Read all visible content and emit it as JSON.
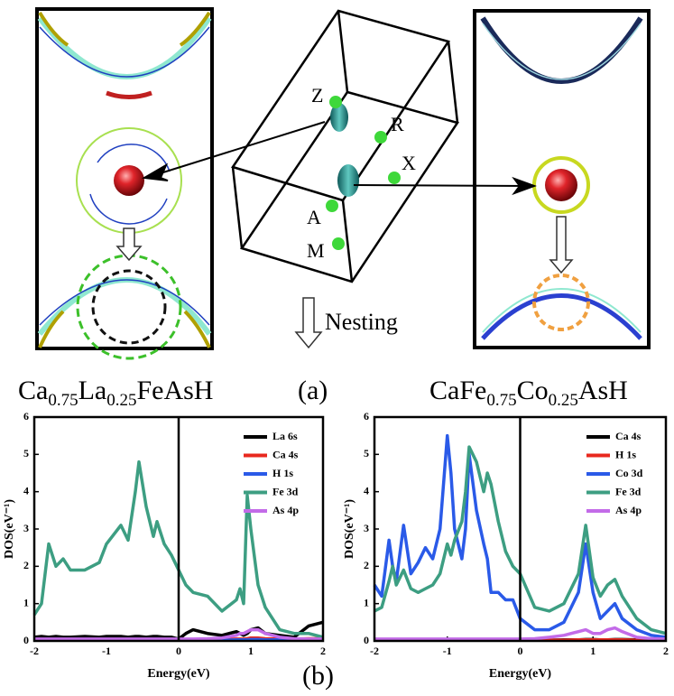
{
  "panel_a": {
    "points": [
      "Z",
      "R",
      "X",
      "A",
      "M"
    ],
    "arrow_label": "Nesting",
    "label": "(a)",
    "left_compound": [
      "Ca",
      "0.75",
      "La",
      "0.25",
      "FeAsH"
    ],
    "right_compound": [
      "CaFe",
      "0.75",
      "Co",
      "0.25",
      "AsH"
    ]
  },
  "panel_b": {
    "label": "(b)"
  },
  "chart_data": [
    {
      "type": "line",
      "xlabel": "Energy(eV)",
      "ylabel": "DOS(eV⁻¹)",
      "xlim": [
        -2,
        2
      ],
      "ylim": [
        0,
        6
      ],
      "xticks": [
        -2,
        -1,
        0,
        1,
        2
      ],
      "yticks": [
        0,
        1,
        2,
        3,
        4,
        5,
        6
      ],
      "fermi_level": 0,
      "legend": "upper right",
      "x": [
        -2,
        -1.9,
        -1.8,
        -1.7,
        -1.6,
        -1.5,
        -1.3,
        -1.1,
        -1,
        -0.8,
        -0.7,
        -0.6,
        -0.55,
        -0.45,
        -0.35,
        -0.3,
        -0.2,
        -0.1,
        0,
        0.1,
        0.2,
        0.4,
        0.6,
        0.8,
        0.85,
        0.9,
        0.95,
        1,
        1.1,
        1.2,
        1.4,
        1.6,
        1.8,
        2
      ],
      "series": [
        {
          "name": "La 6s",
          "color": "#000000",
          "values": [
            0.1,
            0.12,
            0.1,
            0.12,
            0.1,
            0.1,
            0.12,
            0.1,
            0.12,
            0.12,
            0.1,
            0.12,
            0.12,
            0.1,
            0.12,
            0.12,
            0.1,
            0.1,
            0.05,
            0.2,
            0.3,
            0.2,
            0.15,
            0.25,
            0.2,
            0.15,
            0.2,
            0.3,
            0.35,
            0.2,
            0.15,
            0.1,
            0.4,
            0.5
          ]
        },
        {
          "name": "Ca 4s",
          "color": "#e8281e",
          "values": [
            0.03,
            0.03,
            0.03,
            0.03,
            0.03,
            0.03,
            0.03,
            0.03,
            0.03,
            0.03,
            0.03,
            0.03,
            0.03,
            0.03,
            0.03,
            0.03,
            0.03,
            0.03,
            0.02,
            0.03,
            0.04,
            0.04,
            0.04,
            0.05,
            0.05,
            0.05,
            0.06,
            0.08,
            0.08,
            0.06,
            0.05,
            0.05,
            0.06,
            0.06
          ]
        },
        {
          "name": "H  1s",
          "color": "#2a5ae8",
          "values": [
            0.02,
            0.02,
            0.02,
            0.02,
            0.02,
            0.02,
            0.02,
            0.02,
            0.02,
            0.02,
            0.02,
            0.02,
            0.02,
            0.02,
            0.02,
            0.02,
            0.02,
            0.02,
            0.02,
            0.02,
            0.02,
            0.02,
            0.02,
            0.03,
            0.03,
            0.03,
            0.03,
            0.04,
            0.04,
            0.03,
            0.03,
            0.03,
            0.03,
            0.03
          ]
        },
        {
          "name": "Fe 3d",
          "color": "#3d9e82",
          "values": [
            0.7,
            1.0,
            2.6,
            2.0,
            2.2,
            1.9,
            1.9,
            2.1,
            2.6,
            3.1,
            2.7,
            4.0,
            4.8,
            3.6,
            2.8,
            3.2,
            2.6,
            2.3,
            1.9,
            1.5,
            1.3,
            1.2,
            0.8,
            1.1,
            1.4,
            1.0,
            3.9,
            3.0,
            1.5,
            0.9,
            0.3,
            0.2,
            0.2,
            0.1
          ]
        },
        {
          "name": "As 4p",
          "color": "#c36be8",
          "values": [
            0.05,
            0.05,
            0.05,
            0.05,
            0.05,
            0.05,
            0.05,
            0.05,
            0.05,
            0.05,
            0.05,
            0.05,
            0.05,
            0.05,
            0.05,
            0.05,
            0.05,
            0.05,
            0.05,
            0.05,
            0.05,
            0.06,
            0.08,
            0.15,
            0.2,
            0.2,
            0.25,
            0.3,
            0.3,
            0.2,
            0.1,
            0.06,
            0.05,
            0.05
          ]
        }
      ]
    },
    {
      "type": "line",
      "xlabel": "Energy(eV)",
      "ylabel": "DOS(eV⁻¹)",
      "xlim": [
        -2,
        2
      ],
      "ylim": [
        0,
        6
      ],
      "xticks": [
        -2,
        -1,
        0,
        1,
        2
      ],
      "yticks": [
        0,
        1,
        2,
        3,
        4,
        5,
        6
      ],
      "fermi_level": 0,
      "legend": "upper right",
      "x": [
        -2,
        -1.9,
        -1.8,
        -1.75,
        -1.7,
        -1.6,
        -1.5,
        -1.4,
        -1.3,
        -1.2,
        -1.1,
        -1,
        -0.95,
        -0.9,
        -0.8,
        -0.75,
        -0.7,
        -0.6,
        -0.5,
        -0.45,
        -0.4,
        -0.3,
        -0.2,
        -0.1,
        0,
        0.2,
        0.4,
        0.6,
        0.8,
        0.9,
        1,
        1.1,
        1.2,
        1.3,
        1.4,
        1.6,
        1.8,
        2
      ],
      "series": [
        {
          "name": "Ca 4s",
          "color": "#000000",
          "values": [
            0.03,
            0.03,
            0.03,
            0.03,
            0.03,
            0.03,
            0.03,
            0.03,
            0.03,
            0.03,
            0.03,
            0.03,
            0.03,
            0.03,
            0.03,
            0.03,
            0.03,
            0.03,
            0.03,
            0.03,
            0.03,
            0.03,
            0.03,
            0.03,
            0.02,
            0.02,
            0.02,
            0.03,
            0.03,
            0.04,
            0.04,
            0.03,
            0.03,
            0.04,
            0.04,
            0.03,
            0.03,
            0.03
          ]
        },
        {
          "name": "H  1s",
          "color": "#e8281e",
          "values": [
            0.02,
            0.02,
            0.02,
            0.02,
            0.02,
            0.02,
            0.02,
            0.02,
            0.02,
            0.02,
            0.02,
            0.02,
            0.02,
            0.02,
            0.02,
            0.02,
            0.02,
            0.02,
            0.02,
            0.02,
            0.02,
            0.02,
            0.02,
            0.02,
            0.02,
            0.02,
            0.02,
            0.02,
            0.03,
            0.03,
            0.03,
            0.03,
            0.03,
            0.03,
            0.03,
            0.02,
            0.02,
            0.02
          ]
        },
        {
          "name": "Co 3d",
          "color": "#2a5ae8",
          "values": [
            1.5,
            1.2,
            2.7,
            2.0,
            1.6,
            3.1,
            1.8,
            2.1,
            2.5,
            2.2,
            3.0,
            5.5,
            4.5,
            3.0,
            2.2,
            3.0,
            5.0,
            3.5,
            2.6,
            2.2,
            1.3,
            1.3,
            1.1,
            1.1,
            0.6,
            0.3,
            0.3,
            0.5,
            1.3,
            2.6,
            1.3,
            0.6,
            0.8,
            1.0,
            0.6,
            0.3,
            0.15,
            0.1
          ]
        },
        {
          "name": "Fe 3d",
          "color": "#3d9e82",
          "values": [
            0.8,
            0.9,
            1.6,
            2.0,
            1.5,
            1.9,
            1.4,
            1.3,
            1.4,
            1.5,
            1.8,
            2.6,
            2.3,
            2.7,
            3.2,
            4.0,
            5.2,
            4.8,
            4.0,
            4.5,
            4.2,
            3.2,
            2.4,
            2.0,
            1.8,
            0.9,
            0.8,
            1.0,
            1.8,
            3.1,
            1.7,
            1.2,
            1.5,
            1.65,
            1.2,
            0.6,
            0.3,
            0.2
          ]
        },
        {
          "name": "As 4p",
          "color": "#c36be8",
          "values": [
            0.05,
            0.05,
            0.05,
            0.05,
            0.05,
            0.05,
            0.05,
            0.05,
            0.05,
            0.05,
            0.05,
            0.05,
            0.05,
            0.05,
            0.05,
            0.05,
            0.05,
            0.05,
            0.05,
            0.05,
            0.05,
            0.05,
            0.05,
            0.05,
            0.05,
            0.06,
            0.1,
            0.15,
            0.25,
            0.3,
            0.2,
            0.2,
            0.3,
            0.35,
            0.25,
            0.1,
            0.06,
            0.05
          ]
        }
      ]
    }
  ]
}
